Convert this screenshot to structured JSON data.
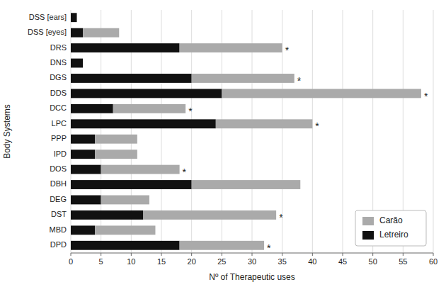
{
  "chart_data": {
    "type": "bar",
    "orientation": "horizontal",
    "stacked": true,
    "xlabel": "Nº of Therapeutic uses",
    "ylabel": "Body Systems",
    "categories": [
      "DSS [ears]",
      "DSS [eyes]",
      "DRS",
      "DNS",
      "DGS",
      "DDS",
      "DCC",
      "LPC",
      "PPP",
      "IPD",
      "DOS",
      "DBH",
      "DEG",
      "DST",
      "MBD",
      "DPD"
    ],
    "series": [
      {
        "name": "Letreiro",
        "color": "#111111",
        "values": [
          1,
          2,
          18,
          2,
          20,
          25,
          7,
          24,
          4,
          4,
          5,
          20,
          5,
          12,
          4,
          18
        ]
      },
      {
        "name": "Carão",
        "color": "#aaaaaa",
        "values": [
          0,
          6,
          17,
          0,
          17,
          33,
          12,
          16,
          7,
          7,
          13,
          18,
          8,
          22,
          10,
          14
        ]
      }
    ],
    "annotations": [
      {
        "text": "*",
        "category": "DRS"
      },
      {
        "text": "*",
        "category": "DGS"
      },
      {
        "text": "*",
        "category": "DDS"
      },
      {
        "text": "*",
        "category": "DCC"
      },
      {
        "text": "*",
        "category": "LPC"
      },
      {
        "text": "*",
        "category": "DOS"
      },
      {
        "text": "*",
        "category": "DST"
      },
      {
        "text": "*",
        "category": "DPD"
      }
    ],
    "xlim": [
      0,
      60
    ],
    "xticks": [
      0,
      5,
      10,
      15,
      20,
      25,
      30,
      35,
      40,
      45,
      50,
      55,
      60
    ],
    "grid": true,
    "legend": "lower right"
  }
}
